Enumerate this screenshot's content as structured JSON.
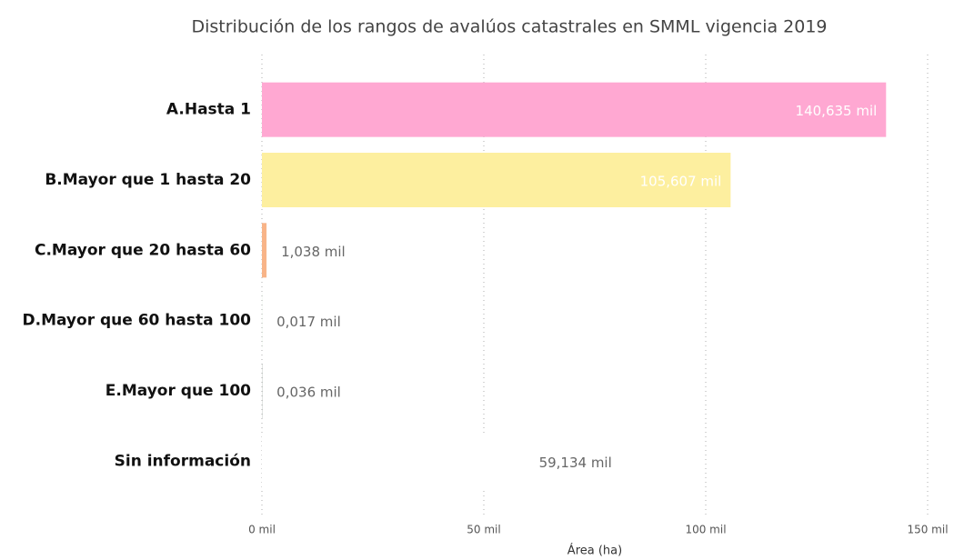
{
  "chart_data": {
    "type": "bar",
    "orientation": "horizontal",
    "title": "Distribución de los rangos de avalúos catastrales en SMML vigencia 2019",
    "x_axis_label": "Área (ha)",
    "categories": [
      "A.Hasta 1",
      "B.Mayor que 1 hasta 20",
      "C.Mayor que 20 hasta 60",
      "D.Mayor que 60 hasta 100",
      "E.Mayor que 100",
      "Sin información"
    ],
    "values": [
      140.635,
      105.607,
      1.038,
      0.017,
      0.036,
      59.134
    ],
    "value_labels": [
      "140,635 mil",
      "105,607 mil",
      "1,038 mil",
      "0,017 mil",
      "0,036 mil",
      "59,134 mil"
    ],
    "colors": [
      "#ffa8d2",
      "#fdef9f",
      "#f8b488",
      "#9fe0a0",
      "#5a6b60",
      "#ffffff"
    ],
    "xlim": [
      0,
      150
    ],
    "xticks": [
      {
        "value": 0,
        "label": "0 mil"
      },
      {
        "value": 50,
        "label": "50 mil"
      },
      {
        "value": 100,
        "label": "100 mil"
      },
      {
        "value": 150,
        "label": "150 mil"
      }
    ],
    "grid": true
  }
}
